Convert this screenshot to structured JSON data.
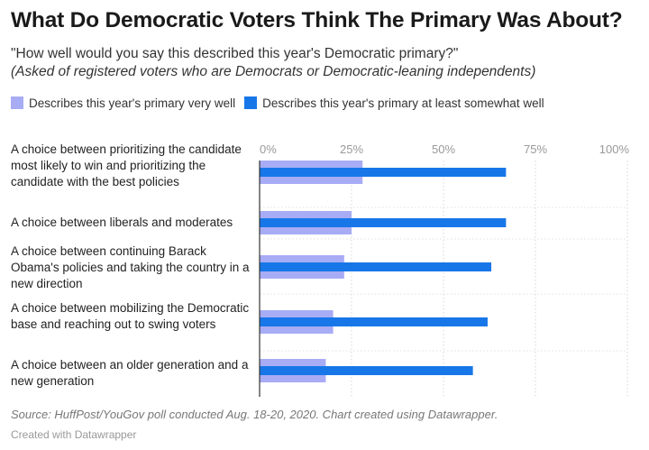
{
  "title": "What Do Democratic Voters Think The Primary Was About?",
  "subtitle": "\"How well would you say this described this year's Democratic primary?\"",
  "subtitle_note": "(Asked of registered voters who are Democrats or Democratic-leaning independents)",
  "source": "Source: HuffPost/YouGov poll conducted Aug. 18-20, 2020. Chart created using Datawrapper.",
  "credit": "Created with Datawrapper",
  "colors": {
    "very_well": "#a8acf5",
    "somewhat_well": "#1877e8"
  },
  "chart_data": {
    "type": "bar",
    "orientation": "horizontal",
    "categories": [
      "A choice between prioritizing the candidate most likely to win and prioritizing the candidate with the best policies",
      "A choice between liberals and moderates",
      "A choice between continuing Barack Obama's policies and taking the country in a new direction",
      "A choice between mobilizing the Democratic base and reaching out to swing voters",
      "A choice between an older generation and a new generation"
    ],
    "series": [
      {
        "name": "Describes this year's primary very well",
        "values": [
          28,
          25,
          23,
          20,
          18
        ]
      },
      {
        "name": "Describes this year's primary at least somewhat well",
        "values": [
          67,
          67,
          63,
          62,
          58
        ]
      }
    ],
    "xticks": [
      "0%",
      "25%",
      "50%",
      "75%",
      "100%"
    ],
    "tick_values": [
      0,
      25,
      50,
      75,
      100
    ],
    "xlim": [
      0,
      100
    ],
    "xlabel": "",
    "ylabel": "",
    "grid": true,
    "legend": "top-left"
  }
}
